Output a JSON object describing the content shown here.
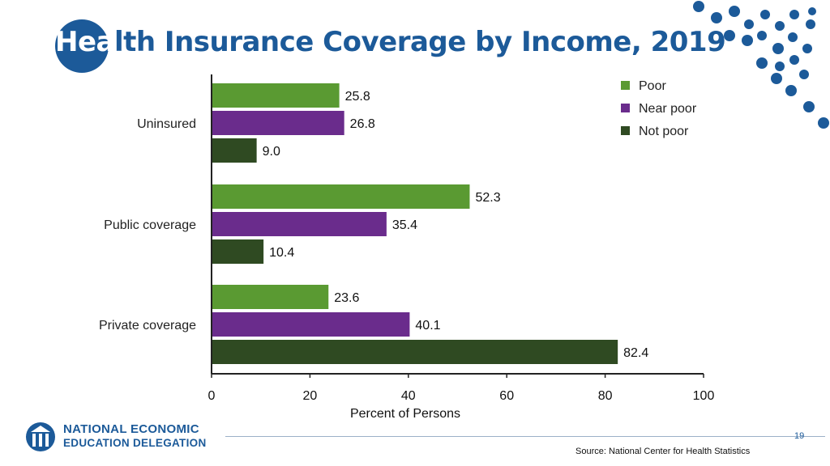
{
  "slide": {
    "title_first": "Hea",
    "title_rest": "lth Insurance Coverage by Income, 2019",
    "page_number": "19",
    "source": "Source: National Center for Health Statistics",
    "logo_line1": "NATIONAL ECONOMIC",
    "logo_line2": "EDUCATION DELEGATION",
    "accent_color": "#1c5a99"
  },
  "chart_data": {
    "type": "bar",
    "orientation": "horizontal",
    "categories": [
      "Uninsured",
      "Public coverage",
      "Private coverage"
    ],
    "series": [
      {
        "name": "Poor",
        "color": "#5a9a32",
        "values": [
          25.8,
          52.3,
          23.6
        ],
        "labels": [
          "25.8",
          "52.3",
          "23.6"
        ]
      },
      {
        "name": "Near poor",
        "color": "#6a2c8c",
        "values": [
          26.8,
          35.4,
          40.1
        ],
        "labels": [
          "26.8",
          "35.4",
          "40.1"
        ]
      },
      {
        "name": "Not poor",
        "color": "#2f4a22",
        "values": [
          9.0,
          10.4,
          82.4
        ],
        "labels": [
          "9.0",
          "10.4",
          "82.4"
        ]
      }
    ],
    "xticks": [
      0,
      20,
      40,
      60,
      80,
      100
    ],
    "xlim": [
      0,
      100
    ],
    "xlabel": "Percent of Persons",
    "ylabel": "",
    "legend_position": "top-right",
    "grid": false
  }
}
